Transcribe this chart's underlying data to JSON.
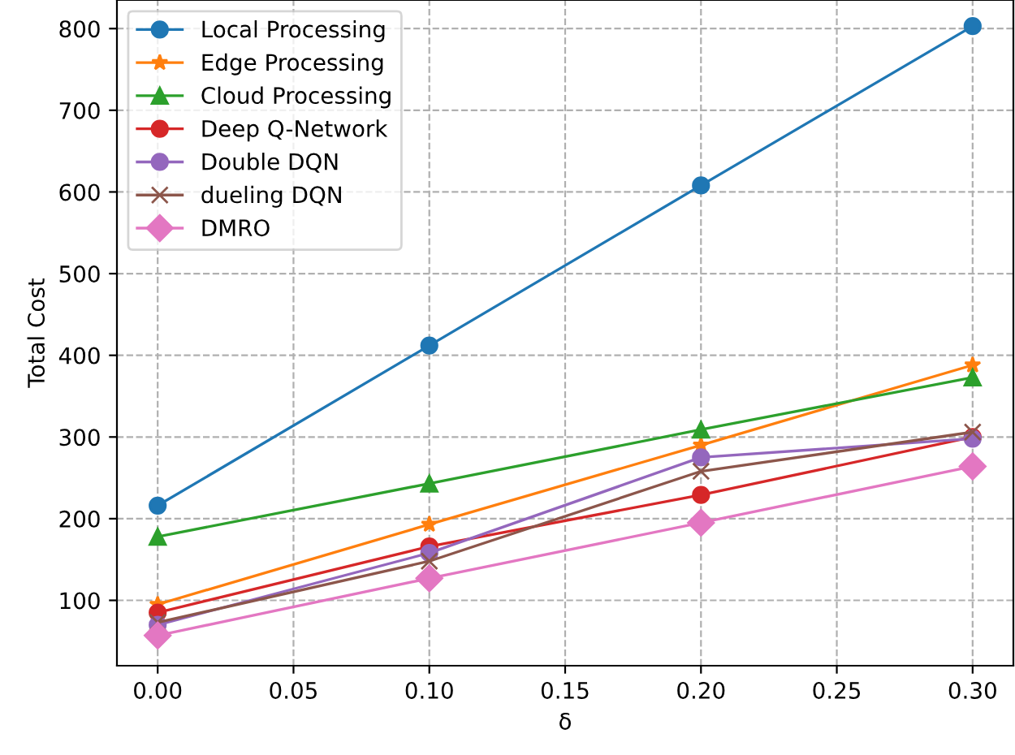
{
  "chart_data": {
    "type": "line",
    "xlabel": "δ",
    "ylabel": "Total Cost",
    "x": [
      0.0,
      0.1,
      0.2,
      0.3
    ],
    "series": [
      {
        "name": "Local Processing",
        "color": "#1f77b4",
        "marker": "circle",
        "values": [
          216,
          412,
          608,
          803
        ]
      },
      {
        "name": "Edge Processing",
        "color": "#ff7f0e",
        "marker": "star",
        "values": [
          95,
          193,
          290,
          388
        ]
      },
      {
        "name": "Cloud Processing",
        "color": "#2ca02c",
        "marker": "triangle",
        "values": [
          178,
          243,
          309,
          373
        ]
      },
      {
        "name": "Deep Q-Network",
        "color": "#d62728",
        "marker": "circle",
        "values": [
          85,
          166,
          229,
          300
        ]
      },
      {
        "name": "Double DQN",
        "color": "#9467bd",
        "marker": "circle",
        "values": [
          70,
          158,
          275,
          298
        ]
      },
      {
        "name": "dueling DQN",
        "color": "#8c564b",
        "marker": "cross",
        "values": [
          73,
          148,
          258,
          306
        ]
      },
      {
        "name": "DMRO",
        "color": "#e377c2",
        "marker": "diamond",
        "values": [
          57,
          127,
          195,
          264
        ]
      }
    ],
    "xlim": [
      -0.015,
      0.315
    ],
    "ylim": [
      20,
      835
    ],
    "xticks": [
      {
        "value": 0.0,
        "label": "0.00"
      },
      {
        "value": 0.05,
        "label": "0.05"
      },
      {
        "value": 0.1,
        "label": "0.10"
      },
      {
        "value": 0.15,
        "label": "0.15"
      },
      {
        "value": 0.2,
        "label": "0.20"
      },
      {
        "value": 0.25,
        "label": "0.25"
      },
      {
        "value": 0.3,
        "label": "0.30"
      }
    ],
    "yticks": [
      100,
      200,
      300,
      400,
      500,
      600,
      700,
      800
    ],
    "grid": true,
    "legend": "top left",
    "line_style": "solid"
  }
}
